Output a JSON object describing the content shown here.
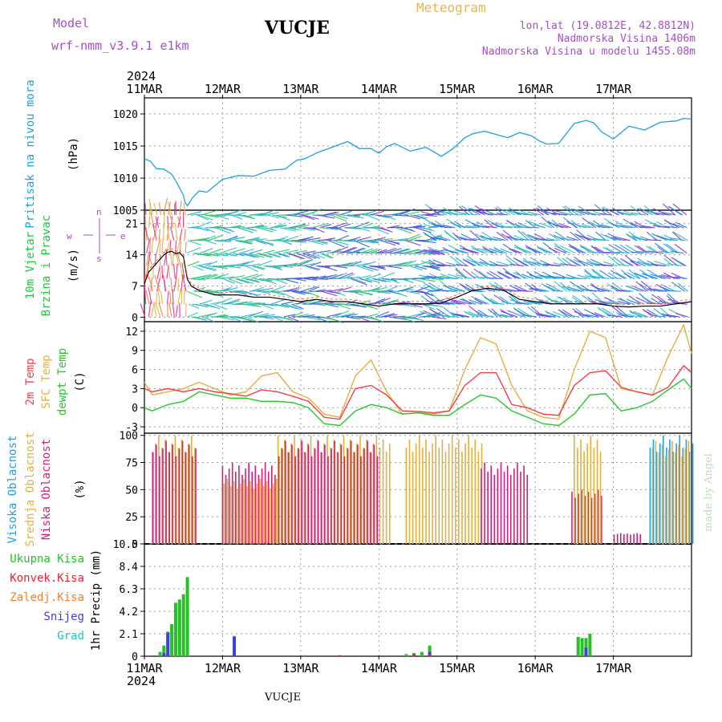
{
  "header": {
    "model_label": "Model",
    "model_name": "wrf-nmm_v3.9.1 e1km",
    "station": "VUCJE",
    "product": "Meteogram",
    "coords": "lon,lat (19.0812E, 42.8812N)",
    "altitude": "Nadmorska Visina 1406m",
    "model_altitude": "Nadmorska Visina u modelu 1455.08m"
  },
  "footer": {
    "station": "VUCJE",
    "made_by": "made by Angel"
  },
  "colors": {
    "pressure": "#1ea0e6",
    "wind_label": "#22c440",
    "dir_label": "#a64ccf",
    "t2m": "#f0404a",
    "sfc": "#e4b040",
    "dew": "#28c828",
    "high_cloud": "#1ea0e6",
    "mid_cloud": "#e4b040",
    "low_cloud": "#d0207a",
    "tot_precip": "#28c028",
    "conv_precip": "#f02030",
    "frz_precip": "#f08030",
    "snow": "#4040e0",
    "hail": "#20c0c0"
  },
  "chart_data": [
    {
      "type": "line",
      "panel": "pressure",
      "ylabel": [
        "Pritisak na nivou mora",
        "(hPa)"
      ],
      "year": "2024",
      "x_ticks": [
        "11MAR",
        "12MAR",
        "13MAR",
        "14MAR",
        "15MAR",
        "16MAR",
        "17MAR"
      ],
      "ylim": [
        1005,
        1022.5
      ],
      "y_ticks": [
        1005,
        1010,
        1015,
        1020
      ],
      "grid": true,
      "series": [
        {
          "name": "Pritisak na nivou mora",
          "x": [
            0,
            0.08,
            0.15,
            0.25,
            0.35,
            0.4,
            0.5,
            0.52,
            0.55,
            0.62,
            0.7,
            0.8,
            1.0,
            1.2,
            1.4,
            1.6,
            1.8,
            1.95,
            2.05,
            2.2,
            2.4,
            2.6,
            2.75,
            2.9,
            3.0,
            3.1,
            3.2,
            3.4,
            3.6,
            3.8,
            3.95,
            4.1,
            4.2,
            4.35,
            4.5,
            4.65,
            4.8,
            4.95,
            5.05,
            5.15,
            5.3,
            5.5,
            5.65,
            5.75,
            5.85,
            6.0,
            6.2,
            6.4,
            6.6,
            6.8,
            6.9,
            7.0
          ],
          "y": [
            1013.0,
            1012.6,
            1011.5,
            1011.4,
            1010.6,
            1009.6,
            1007.3,
            1006.2,
            1005.7,
            1007.0,
            1008.0,
            1007.8,
            1009.8,
            1010.4,
            1010.3,
            1011.2,
            1011.4,
            1012.8,
            1013.0,
            1013.9,
            1014.8,
            1015.7,
            1014.6,
            1014.6,
            1013.9,
            1014.9,
            1015.4,
            1014.2,
            1014.8,
            1013.4,
            1014.6,
            1016.3,
            1016.9,
            1017.3,
            1016.8,
            1016.3,
            1017.1,
            1016.6,
            1015.8,
            1015.3,
            1015.4,
            1018.5,
            1019.0,
            1018.6,
            1017.2,
            1016.1,
            1018.1,
            1017.5,
            1018.7,
            1018.9,
            1019.3,
            1019.2
          ]
        }
      ]
    },
    {
      "type": "line",
      "panel": "wind",
      "ylabel": [
        "10m Vjetar",
        "Brzina i Pravac",
        "(m/s)"
      ],
      "direction_key": {
        "w": "w",
        "s": "s",
        "e": "e",
        "n": "n"
      },
      "ylim": [
        -1,
        24
      ],
      "y_ticks": [
        0,
        7,
        14,
        21
      ],
      "grid": true,
      "series": [
        {
          "name": "Brzina",
          "x": [
            0,
            0.05,
            0.1,
            0.15,
            0.2,
            0.25,
            0.3,
            0.35,
            0.4,
            0.45,
            0.5,
            0.55,
            0.6,
            0.7,
            0.8,
            0.9,
            1.0,
            1.2,
            1.4,
            1.6,
            1.8,
            2.0,
            2.2,
            2.4,
            2.6,
            2.8,
            3.0,
            3.2,
            3.4,
            3.6,
            3.8,
            4.0,
            4.2,
            4.4,
            4.6,
            4.8,
            5.0,
            5.2,
            5.4,
            5.6,
            5.8,
            6.0,
            6.2,
            6.4,
            6.6,
            6.8,
            7.0
          ],
          "y": [
            7.5,
            10,
            11,
            12,
            13,
            14,
            14.6,
            14.8,
            14.2,
            14.5,
            13.5,
            8.5,
            7,
            6,
            5.5,
            5,
            5,
            5,
            4.5,
            4.5,
            4,
            3.5,
            4,
            3.5,
            3.5,
            3,
            2.5,
            3,
            3,
            3,
            3.2,
            4.5,
            6,
            6.5,
            6,
            4,
            3.5,
            3,
            3,
            3,
            3,
            2.5,
            2.3,
            2.5,
            2.5,
            3,
            3.5
          ]
        }
      ]
    },
    {
      "type": "line",
      "panel": "temperature",
      "ylabel": [
        "2m Temp",
        "SFC Temp",
        "dewpt Temp",
        "(C)"
      ],
      "ylim": [
        -4,
        13.5
      ],
      "y_ticks": [
        -3,
        0,
        3,
        6,
        9,
        12
      ],
      "grid": true,
      "series": [
        {
          "name": "2m Temp",
          "x": [
            0,
            0.1,
            0.3,
            0.5,
            0.7,
            0.9,
            1.1,
            1.3,
            1.5,
            1.7,
            1.9,
            2.1,
            2.3,
            2.5,
            2.7,
            2.9,
            3.1,
            3.3,
            3.5,
            3.7,
            3.9,
            4.1,
            4.3,
            4.5,
            4.7,
            4.9,
            5.1,
            5.3,
            5.5,
            5.7,
            5.9,
            6.1,
            6.3,
            6.5,
            6.7,
            6.9,
            7.0
          ],
          "y": [
            3,
            2.5,
            3,
            2.5,
            3,
            2.5,
            2.2,
            1.8,
            2.8,
            2.5,
            1.8,
            1,
            -1.5,
            -1.8,
            3,
            3.5,
            2,
            -0.5,
            -0.6,
            -0.8,
            -0.5,
            3.5,
            5.5,
            5.5,
            0.5,
            0,
            -1,
            -1.2,
            3.5,
            5.5,
            5.8,
            3.2,
            2.5,
            2,
            3.2,
            6.6,
            5.5
          ]
        },
        {
          "name": "SFC Temp",
          "x": [
            0,
            0.1,
            0.3,
            0.5,
            0.7,
            0.9,
            1.1,
            1.3,
            1.5,
            1.7,
            1.9,
            2.1,
            2.3,
            2.5,
            2.7,
            2.9,
            3.1,
            3.3,
            3.5,
            3.7,
            3.9,
            4.1,
            4.3,
            4.5,
            4.7,
            4.9,
            5.1,
            5.3,
            5.5,
            5.7,
            5.9,
            6.1,
            6.3,
            6.5,
            6.7,
            6.9,
            7.0
          ],
          "y": [
            4,
            2,
            2.5,
            3,
            4,
            3,
            2,
            2.5,
            5,
            5.5,
            2.5,
            1.5,
            -1,
            -1.5,
            5,
            7.5,
            2.5,
            -1,
            -0.8,
            -1,
            -0.5,
            6,
            11,
            10,
            3.5,
            -0.5,
            -1.5,
            -1.8,
            6,
            12,
            11,
            3,
            2.5,
            2,
            8,
            13,
            8.5
          ]
        },
        {
          "name": "dewpt Temp",
          "x": [
            0,
            0.1,
            0.3,
            0.5,
            0.7,
            0.9,
            1.1,
            1.3,
            1.5,
            1.7,
            1.9,
            2.1,
            2.3,
            2.5,
            2.7,
            2.9,
            3.1,
            3.3,
            3.5,
            3.7,
            3.9,
            4.1,
            4.3,
            4.5,
            4.7,
            4.9,
            5.1,
            5.3,
            5.5,
            5.7,
            5.9,
            6.1,
            6.3,
            6.5,
            6.7,
            6.9,
            7.0
          ],
          "y": [
            0,
            -0.5,
            0.5,
            1,
            2.5,
            2,
            1.5,
            1.5,
            1,
            1,
            0.8,
            0,
            -2.5,
            -2.8,
            -0.5,
            0.5,
            0,
            -1,
            -0.8,
            -1.2,
            -1.2,
            0.5,
            2,
            1.5,
            -0.5,
            -1.5,
            -2.5,
            -2.8,
            -1,
            2,
            2.2,
            -0.5,
            0,
            1,
            2.8,
            4.5,
            3
          ]
        }
      ]
    },
    {
      "type": "bar",
      "panel": "clouds",
      "ylabel": [
        "Visoka Oblacnost",
        "Srednja Oblacnost",
        "Niska Oblacnost",
        "(%)"
      ],
      "ylim": [
        0,
        102
      ],
      "y_ticks": [
        0,
        25,
        50,
        75,
        100
      ],
      "grid": true,
      "segments": [
        {
          "series": "Srednja Oblacnost",
          "x0": 0.1,
          "x1": 0.65,
          "value": 100
        },
        {
          "series": "Niska Oblacnost",
          "x0": 0.1,
          "x1": 0.65,
          "value": 95
        },
        {
          "series": "Srednja Oblacnost",
          "x0": 1.0,
          "x1": 1.7,
          "value": 60
        },
        {
          "series": "Niska Oblacnost",
          "x0": 1.0,
          "x1": 1.7,
          "value": 75
        },
        {
          "series": "Srednja Oblacnost",
          "x0": 1.7,
          "x1": 3.15,
          "value": 100
        },
        {
          "series": "Niska Oblacnost",
          "x0": 1.7,
          "x1": 3.0,
          "value": 95
        },
        {
          "series": "Srednja Oblacnost",
          "x0": 3.35,
          "x1": 4.35,
          "value": 100
        },
        {
          "series": "Niska Oblacnost",
          "x0": 4.3,
          "x1": 4.9,
          "value": 75
        },
        {
          "series": "Niska Oblacnost",
          "x0": 5.45,
          "x1": 5.85,
          "value": 50
        },
        {
          "series": "Srednja Oblacnost",
          "x0": 5.5,
          "x1": 5.85,
          "value": 100
        },
        {
          "series": "Niska Oblacnost",
          "x0": 6.0,
          "x1": 6.35,
          "value": 10
        },
        {
          "series": "Visoka Oblacnost",
          "x0": 6.45,
          "x1": 7.0,
          "value": 100
        },
        {
          "series": "Srednja Oblacnost",
          "x0": 6.5,
          "x1": 7.0,
          "value": 95
        }
      ]
    },
    {
      "type": "bar",
      "panel": "precip",
      "ylabel": [
        "Ukupna Kisa",
        "Konvek.Kisa",
        "Zaledj.Kisa",
        "Snijeg",
        "Grad",
        "1hr Precip (mm)"
      ],
      "ylim": [
        0,
        10.5
      ],
      "y_ticks": [
        0,
        2.1,
        4.2,
        6.3,
        8.4,
        10.5
      ],
      "grid": true,
      "series": [
        {
          "name": "Ukupna Kisa",
          "x": [
            0.2,
            0.25,
            0.3,
            0.35,
            0.4,
            0.45,
            0.5,
            0.55,
            1.15,
            2.05,
            3.35,
            3.45,
            3.55,
            3.65,
            5.55,
            5.6,
            5.65,
            5.7
          ],
          "y": [
            0.4,
            1,
            2.3,
            3,
            5,
            5.3,
            5.8,
            7.4,
            1.9,
            0.1,
            0.2,
            0.3,
            0.4,
            1,
            1.8,
            1.7,
            1.7,
            2.1
          ]
        },
        {
          "name": "Snijeg",
          "x": [
            0.25,
            0.3,
            1.15,
            3.65,
            5.65
          ],
          "y": [
            0.3,
            2.2,
            1.8,
            0.4,
            0.8
          ]
        },
        {
          "name": "Konvek.Kisa",
          "x": [
            2.5,
            3.45,
            3.65
          ],
          "y": [
            0.1,
            0.2,
            0.15
          ]
        }
      ]
    }
  ]
}
